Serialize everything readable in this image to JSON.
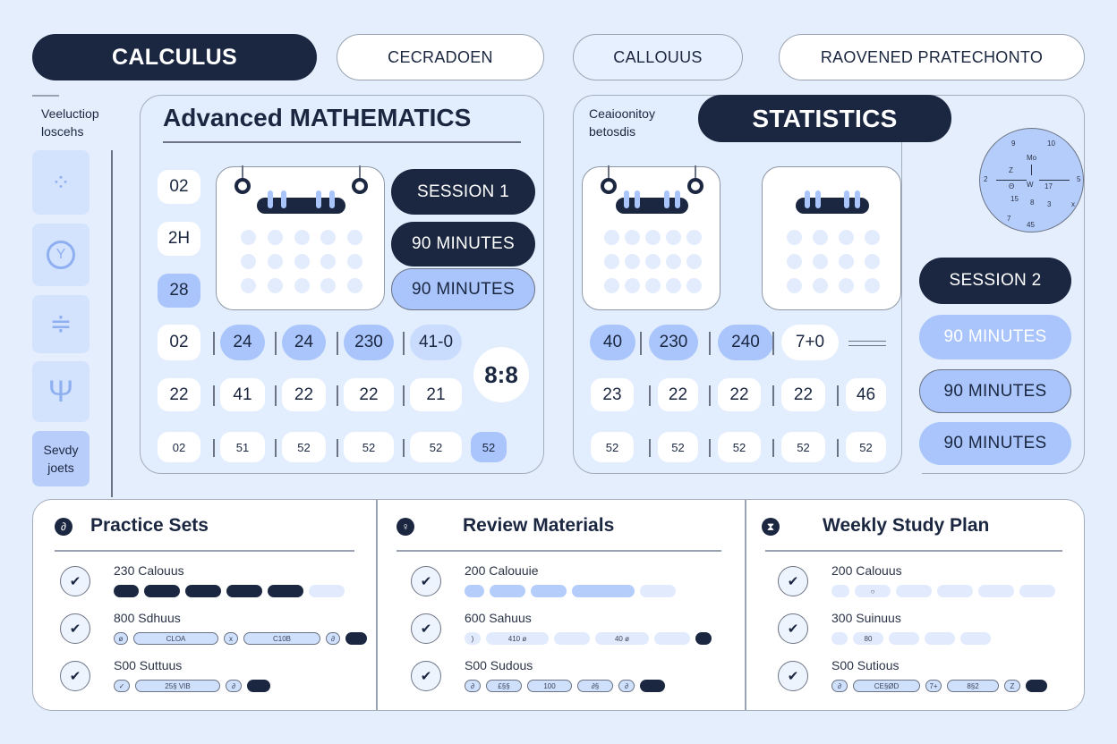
{
  "top_tabs": [
    "CALCULUS",
    "CECRADOEN",
    "CALLOUUS",
    "RAOVENED PRATECHONTO"
  ],
  "sidebar": {
    "caption_line1": "Veeluctiop",
    "caption_line2": "loscehs",
    "active_line1": "Sevdy",
    "active_line2": "joets",
    "icons": [
      "dots-grid-icon",
      "circle-y-icon",
      "divide-icon",
      "trident-icon"
    ]
  },
  "math": {
    "title": "Advanced MATHEMATICS",
    "left_cells": [
      {
        "t": "02",
        "tone": "white"
      },
      {
        "t": "2H",
        "tone": "white"
      },
      {
        "t": "28",
        "tone": "blue"
      }
    ],
    "sessions": [
      {
        "t": "SESSION 1",
        "tone": "dark"
      },
      {
        "t": "90 MINUTES",
        "tone": "dark"
      },
      {
        "t": "90 MINUTES",
        "tone": "blue"
      }
    ],
    "rows": [
      [
        {
          "t": "02",
          "tone": "white"
        },
        {
          "t": "24",
          "tone": "blue"
        },
        {
          "t": "24",
          "tone": "blue"
        },
        {
          "t": "230",
          "tone": "blue"
        },
        {
          "t": "41-0",
          "tone": "light"
        }
      ],
      [
        {
          "t": "22",
          "tone": "white"
        },
        {
          "t": "41",
          "tone": "white"
        },
        {
          "t": "22",
          "tone": "white"
        },
        {
          "t": "22",
          "tone": "white"
        },
        {
          "t": "21",
          "tone": "white"
        }
      ],
      [
        {
          "t": "02",
          "tone": "white"
        },
        {
          "t": "51",
          "tone": "white"
        },
        {
          "t": "52",
          "tone": "white"
        },
        {
          "t": "52",
          "tone": "white"
        },
        {
          "t": "52",
          "tone": "white"
        },
        {
          "t": "52",
          "tone": "blue"
        }
      ]
    ],
    "timer": "8:8"
  },
  "stats": {
    "caption_line1": "Ceaioonitoy",
    "caption_line2": "betosdis",
    "title": "STATISTICS",
    "rows": [
      [
        {
          "t": "40",
          "tone": "blue"
        },
        {
          "t": "230",
          "tone": "blue"
        },
        {
          "t": "240",
          "tone": "blue"
        },
        {
          "t": "7+0",
          "tone": "white"
        }
      ],
      [
        {
          "t": "23",
          "tone": "white"
        },
        {
          "t": "22",
          "tone": "white"
        },
        {
          "t": "22",
          "tone": "white"
        },
        {
          "t": "22",
          "tone": "white"
        },
        {
          "t": "46",
          "tone": "white"
        }
      ],
      [
        {
          "t": "52",
          "tone": "white"
        },
        {
          "t": "52",
          "tone": "white"
        },
        {
          "t": "52",
          "tone": "white"
        },
        {
          "t": "52",
          "tone": "white"
        },
        {
          "t": "52",
          "tone": "white"
        }
      ]
    ],
    "sessions": [
      {
        "t": "SESSION 2",
        "tone": "dark"
      },
      {
        "t": "90 MINUTES",
        "tone": "blue-w"
      },
      {
        "t": "90 MINUTES",
        "tone": "blue-o"
      },
      {
        "t": "90 MINUTES",
        "tone": "blue"
      }
    ],
    "clock_labels": [
      "9",
      "10",
      "Mo",
      "2",
      "5",
      "Z",
      "Θ",
      "W",
      "17",
      "15",
      "8",
      "3",
      "7",
      "x",
      "45"
    ]
  },
  "bottom": [
    {
      "title": "Practice Sets",
      "icon": "document-icon",
      "glyph": "∂",
      "items": [
        {
          "label": "230 Calouus",
          "chips": [
            "",
            "",
            "",
            "",
            "",
            ""
          ]
        },
        {
          "label": "800 Sdhuus",
          "chips": [
            "ø",
            "CLOA",
            "x",
            "C10B",
            "∂",
            ""
          ]
        },
        {
          "label": "S00 Suttuus",
          "chips": [
            "✓",
            "25§  VIB",
            "∂",
            ""
          ]
        }
      ]
    },
    {
      "title": "Review Materials",
      "icon": "lightbulb-icon",
      "glyph": "♀",
      "items": [
        {
          "label": "200 Calouuie",
          "chips": [
            "",
            "",
            "",
            "",
            ""
          ]
        },
        {
          "label": "600 Sahuus",
          "chips": [
            ")",
            "410 ø",
            "",
            "40 ø",
            "",
            ""
          ]
        },
        {
          "label": "S00 Sudous",
          "chips": [
            "∂",
            "£§§",
            "100",
            "∂§",
            "∂",
            ""
          ]
        }
      ]
    },
    {
      "title": "Weekly Study Plan",
      "icon": "hourglass-icon",
      "glyph": "⧗",
      "items": [
        {
          "label": "200 Calouus",
          "chips": [
            "",
            "○",
            "",
            "",
            "",
            ""
          ]
        },
        {
          "label": "300 Suinuus",
          "chips": [
            "",
            "80",
            "",
            "",
            ""
          ]
        },
        {
          "label": "S00 Sutious",
          "chips": [
            "∂",
            "CE§ØD",
            "7+",
            "8§2",
            "Z",
            ""
          ]
        }
      ]
    }
  ],
  "colors": {
    "dark": "#1b2740",
    "accent": "#a9c5fb",
    "background": "#e4eefc"
  }
}
